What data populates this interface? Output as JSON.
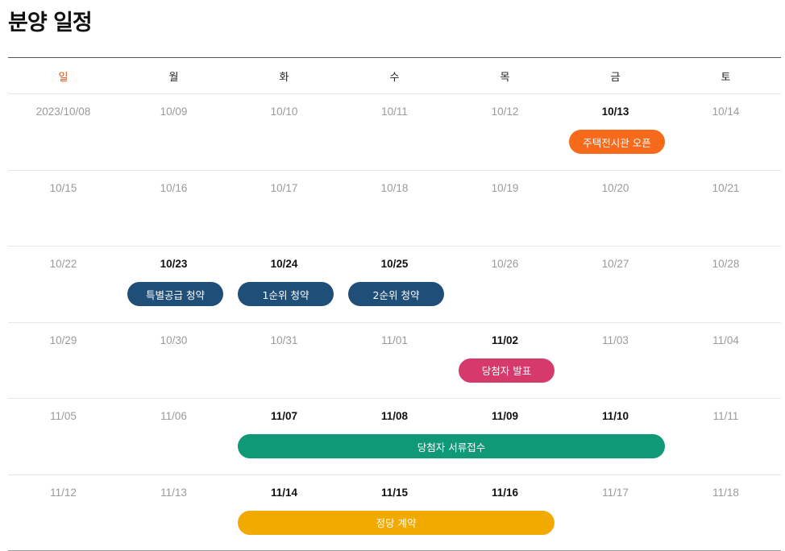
{
  "page": {
    "title": "분양 일정"
  },
  "calendar": {
    "weekdays": [
      "일",
      "월",
      "화",
      "수",
      "목",
      "금",
      "토"
    ],
    "weeks": [
      {
        "days": [
          "2023/10/08",
          "10/09",
          "10/10",
          "10/11",
          "10/12",
          "10/13",
          "10/14"
        ],
        "active": [
          5
        ],
        "events": [
          {
            "label": "주택전시관 오픈",
            "start": 5,
            "end": 5,
            "color": "#f7691b"
          }
        ]
      },
      {
        "days": [
          "10/15",
          "10/16",
          "10/17",
          "10/18",
          "10/19",
          "10/20",
          "10/21"
        ],
        "active": [],
        "events": []
      },
      {
        "days": [
          "10/22",
          "10/23",
          "10/24",
          "10/25",
          "10/26",
          "10/27",
          "10/28"
        ],
        "active": [
          1,
          2,
          3
        ],
        "events": [
          {
            "label": "특별공급 청약",
            "start": 1,
            "end": 1,
            "color": "#1f4e79"
          },
          {
            "label": "1순위 청약",
            "start": 2,
            "end": 2,
            "color": "#1f4e79"
          },
          {
            "label": "2순위 청약",
            "start": 3,
            "end": 3,
            "color": "#1f4e79"
          }
        ]
      },
      {
        "days": [
          "10/29",
          "10/30",
          "10/31",
          "11/01",
          "11/02",
          "11/03",
          "11/04"
        ],
        "active": [
          4
        ],
        "events": [
          {
            "label": "당첨자 발표",
            "start": 4,
            "end": 4,
            "color": "#d63a6a"
          }
        ]
      },
      {
        "days": [
          "11/05",
          "11/06",
          "11/07",
          "11/08",
          "11/09",
          "11/10",
          "11/11"
        ],
        "active": [
          2,
          3,
          4,
          5
        ],
        "events": [
          {
            "label": "당첨자 서류접수",
            "start": 2,
            "end": 5,
            "color": "#0f9977"
          }
        ]
      },
      {
        "days": [
          "11/12",
          "11/13",
          "11/14",
          "11/15",
          "11/16",
          "11/17",
          "11/18"
        ],
        "active": [
          2,
          3,
          4
        ],
        "events": [
          {
            "label": "정당 계약",
            "start": 2,
            "end": 4,
            "color": "#f2a900"
          }
        ]
      }
    ]
  }
}
